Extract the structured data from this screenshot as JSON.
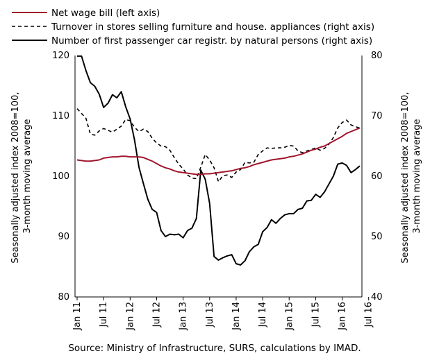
{
  "chart_data": {
    "type": "line",
    "x_tick_labels": [
      "Jan 11",
      "Jul 11",
      "Jan 12",
      "Jul 12",
      "Jan 13",
      "Jul 13",
      "Jan 14",
      "Jul 14",
      "Jan 15",
      "Jul 15",
      "Jan 16",
      "Jul 16"
    ],
    "x_start": "2011-01",
    "ylabel_left": "Seasonally adjusted index 2008=100, 3-month moving average",
    "ylabel_right": "Seasonally adjusted index 2008=100, 3-month moving average",
    "ylim_left": [
      80,
      120
    ],
    "yticks_left": [
      "80",
      "90",
      "100",
      "110",
      "120"
    ],
    "ylim_right": [
      40,
      80
    ],
    "yticks_right": [
      "40",
      "50",
      "60",
      "70",
      "80"
    ],
    "grid": false,
    "legend_position": "top",
    "source": "Source: Ministry of Infrastructure, SURS, calculations by IMAD.",
    "series": [
      {
        "name": "Net wage bill (left axis)",
        "axis": "left",
        "color": "#a0162c",
        "style": "solid",
        "values": [
          102.7,
          102.6,
          102.5,
          102.5,
          102.6,
          102.7,
          103.0,
          103.1,
          103.2,
          103.2,
          103.3,
          103.3,
          103.2,
          103.2,
          103.2,
          103.1,
          102.8,
          102.5,
          102.1,
          101.7,
          101.4,
          101.2,
          100.9,
          100.7,
          100.6,
          100.5,
          100.4,
          100.3,
          100.3,
          100.4,
          100.4,
          100.5,
          100.6,
          100.7,
          100.8,
          100.9,
          101.1,
          101.3,
          101.4,
          101.6,
          101.9,
          102.1,
          102.3,
          102.5,
          102.7,
          102.8,
          102.9,
          103.0,
          103.2,
          103.3,
          103.5,
          103.7,
          104.0,
          104.3,
          104.5,
          104.8,
          105.0,
          105.4,
          105.8,
          106.2,
          106.6,
          107.1,
          107.4,
          107.7,
          108.0
        ]
      },
      {
        "name": "Turnover in stores selling furniture and house. appliances (right axis)",
        "axis": "right",
        "color": "#000000",
        "style": "dashed",
        "values": [
          71.2,
          70.4,
          69.6,
          67.0,
          66.8,
          67.5,
          67.9,
          67.6,
          67.3,
          67.8,
          68.3,
          69.4,
          69.2,
          68.1,
          67.4,
          67.8,
          67.4,
          66.3,
          65.5,
          65.0,
          64.9,
          64.3,
          63.1,
          62.0,
          61.2,
          60.2,
          59.7,
          59.6,
          61.5,
          63.6,
          62.7,
          61.4,
          59.1,
          60.1,
          60.2,
          59.8,
          60.7,
          61.1,
          62.3,
          62.2,
          62.3,
          63.6,
          64.2,
          64.7,
          64.6,
          64.7,
          64.7,
          64.8,
          65.1,
          65.0,
          64.2,
          63.9,
          64.2,
          64.4,
          64.7,
          64.3,
          64.6,
          65.3,
          66.4,
          68.0,
          68.9,
          69.3,
          68.5,
          68.2,
          68.0
        ]
      },
      {
        "name": "Number of first passenger car registr. by natural persons (right axis)",
        "axis": "right",
        "color": "#000000",
        "style": "solid",
        "values": [
          79.9,
          79.9,
          77.5,
          75.5,
          74.9,
          73.6,
          71.4,
          72.1,
          73.5,
          73.0,
          74.0,
          71.5,
          69.5,
          66.0,
          61.5,
          58.8,
          56.2,
          54.5,
          54.0,
          51.0,
          50.0,
          50.4,
          50.3,
          50.4,
          49.8,
          51.0,
          51.4,
          53.0,
          61.0,
          59.5,
          55.5,
          46.7,
          46.1,
          46.5,
          46.8,
          47.0,
          45.5,
          45.3,
          46.0,
          47.5,
          48.3,
          48.7,
          50.8,
          51.5,
          52.8,
          52.2,
          53.0,
          53.6,
          53.8,
          53.8,
          54.5,
          54.7,
          55.9,
          56.0,
          57.0,
          56.5,
          57.4,
          58.7,
          60.0,
          62.0,
          62.2,
          61.8,
          60.6,
          61.1,
          61.7
        ]
      }
    ]
  }
}
